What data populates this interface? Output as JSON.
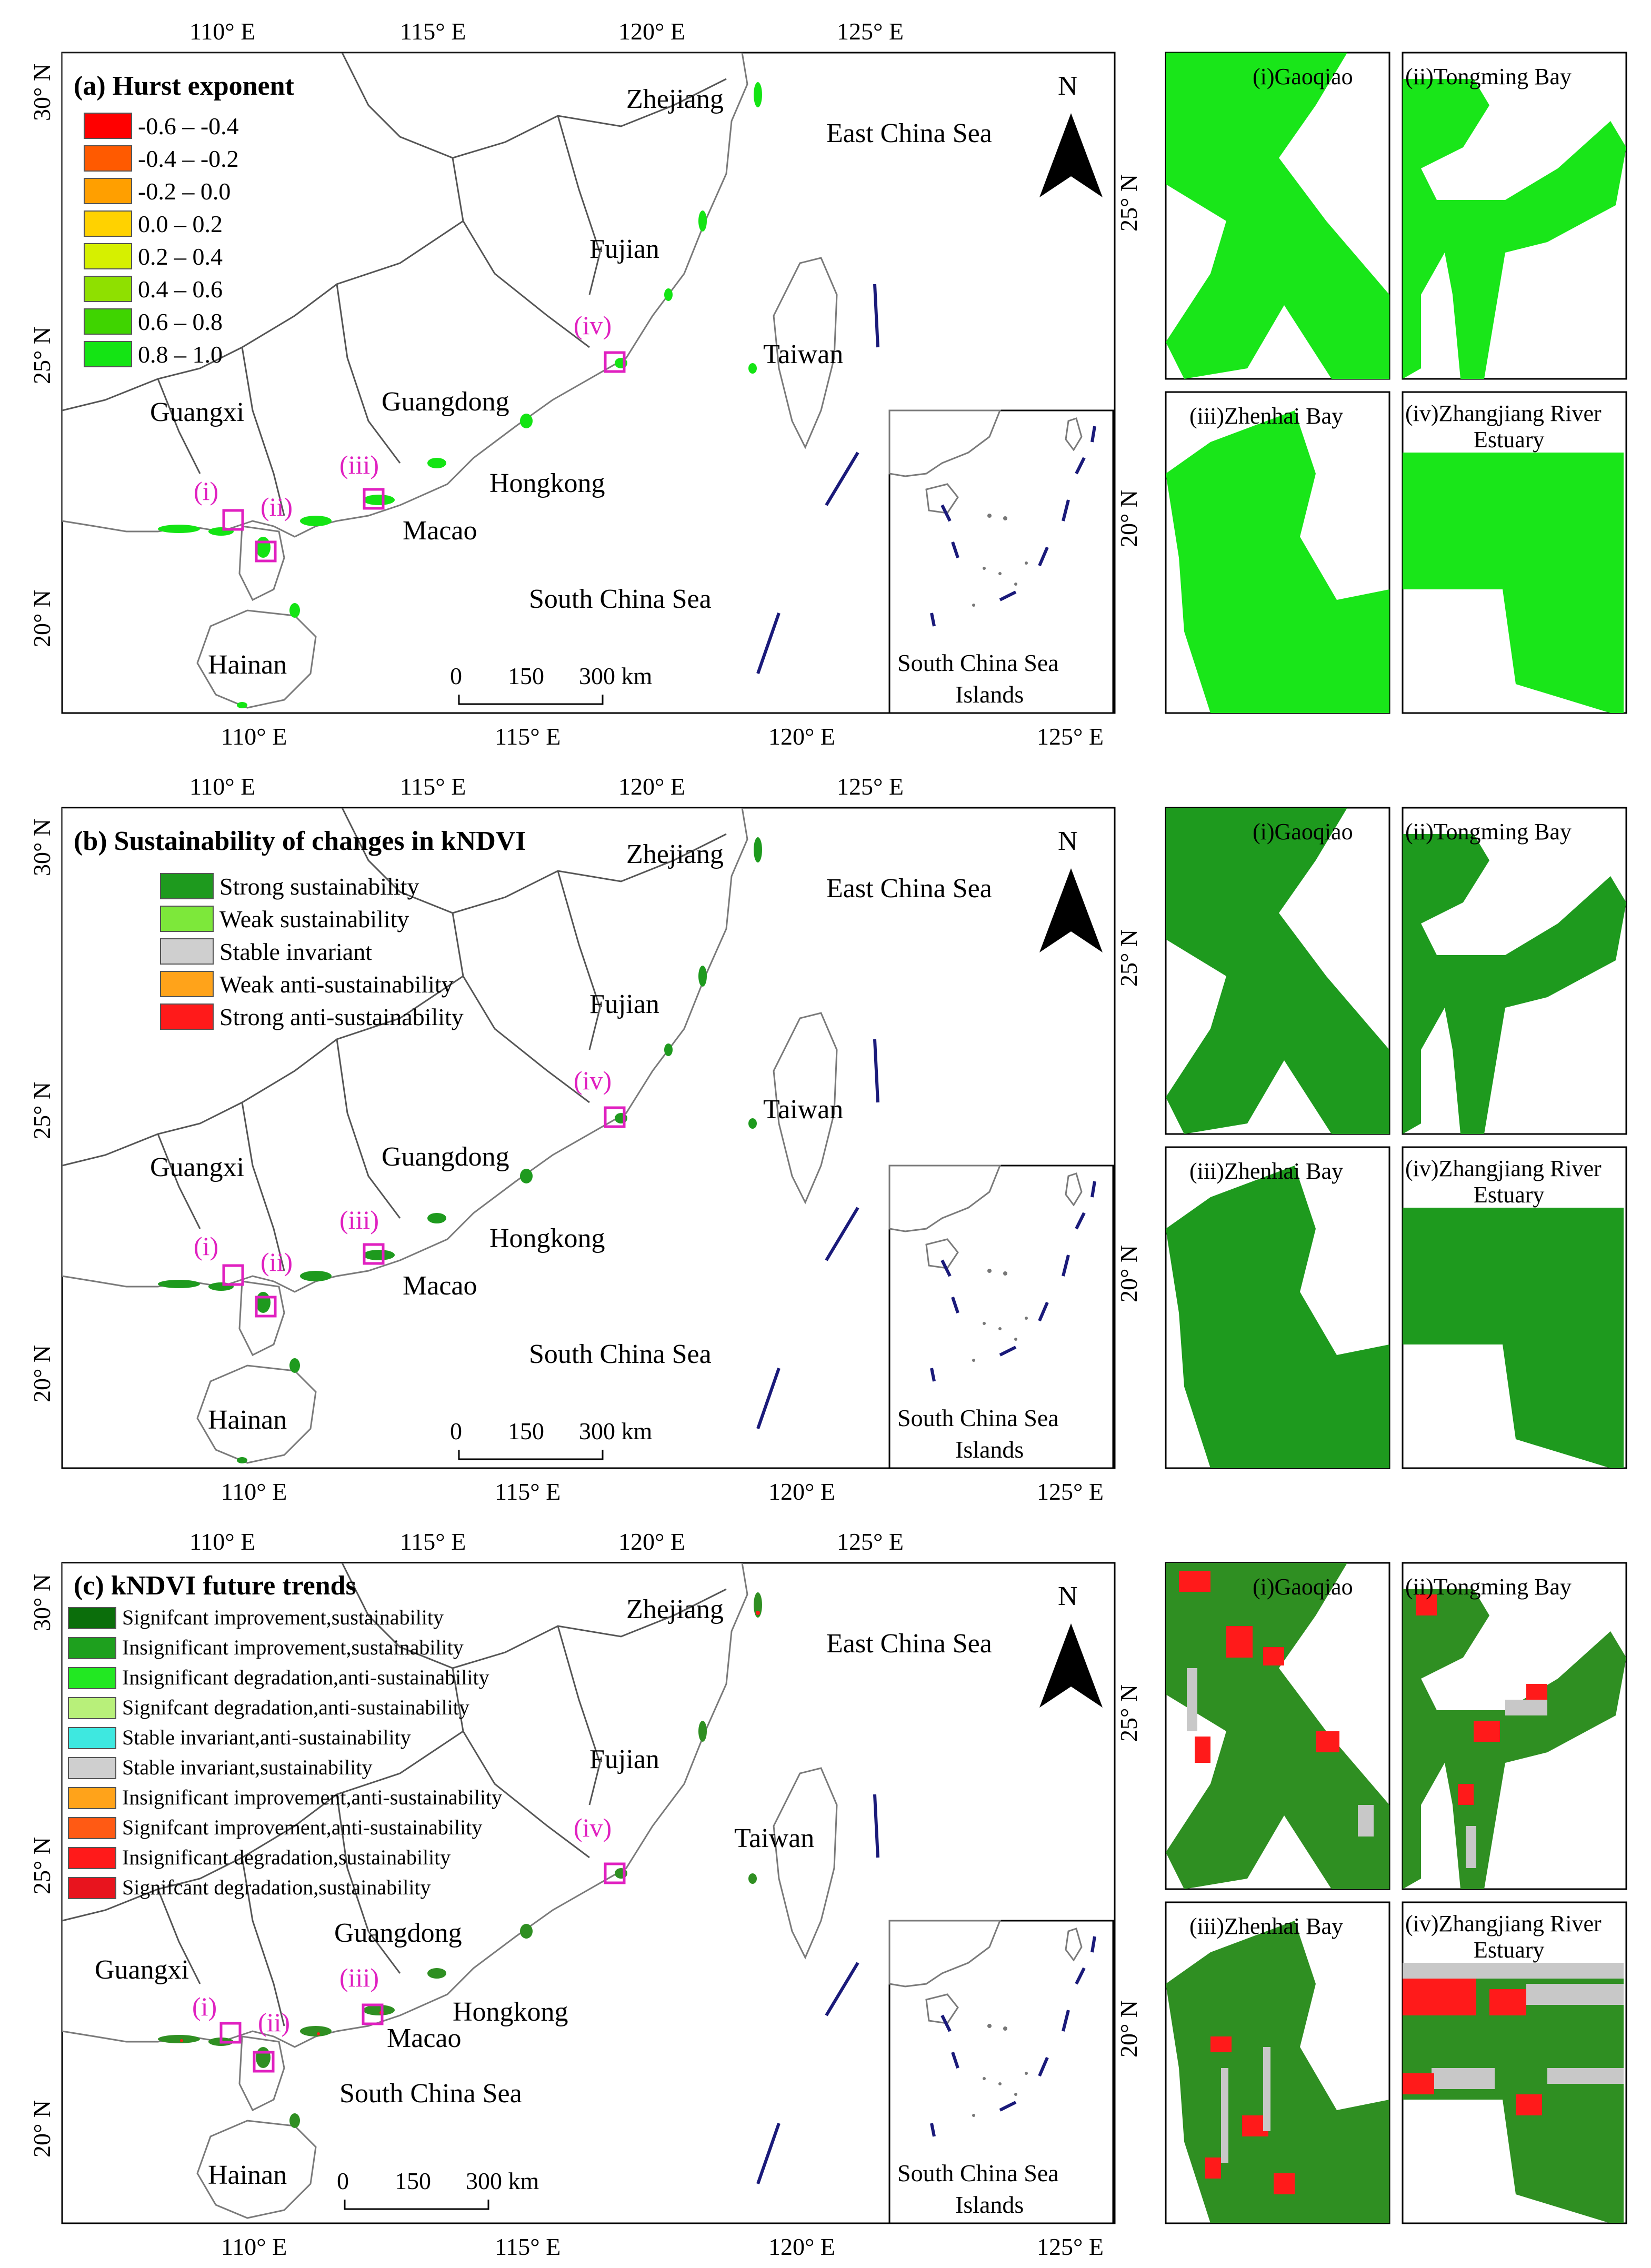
{
  "axes": {
    "lon_ticks": [
      "110° E",
      "115° E",
      "120° E",
      "125° E"
    ],
    "lat_ticks": [
      "30° N",
      "25° N",
      "20° N"
    ],
    "inset_lat_ticks": [
      "25° N",
      "20° N"
    ]
  },
  "common_labels": {
    "north": "N",
    "provinces": [
      "Zhejiang",
      "Fujian",
      "Guangdong",
      "Guangxi",
      "Hongkong",
      "Macao",
      "Hainan",
      "Taiwan"
    ],
    "seas": [
      "East China Sea",
      "South China Sea"
    ],
    "inset_title_line1": "South China Sea",
    "inset_title_line2": "Islands",
    "scale": [
      "0",
      "150",
      "300 km"
    ],
    "roman": [
      "(i)",
      "(ii)",
      "(iii)",
      "(iv)"
    ],
    "zoom_titles": [
      "(i)Gaoqiao",
      "(ii)Tongming Bay",
      "(iii)Zhenhai Bay",
      "(iv)Zhangjiang River",
      "Estuary"
    ]
  },
  "panel_a": {
    "title": "(a) Hurst exponent",
    "legend": [
      {
        "label": "-0.6 – -0.4",
        "color": "#ff0000"
      },
      {
        "label": "-0.4 – -0.2",
        "color": "#ff5a00"
      },
      {
        "label": "-0.2 – 0.0",
        "color": "#ff9f00"
      },
      {
        "label": "0.0 – 0.2",
        "color": "#ffd200"
      },
      {
        "label": "0.2 – 0.4",
        "color": "#d6f000"
      },
      {
        "label": "0.4 – 0.6",
        "color": "#8fe000"
      },
      {
        "label": "0.6 – 0.8",
        "color": "#3fd400"
      },
      {
        "label": "0.8 – 1.0",
        "color": "#14e414"
      }
    ],
    "zoom_fill": "#19e619"
  },
  "panel_b": {
    "title": "(b) Sustainability of changes in kNDVI",
    "legend": [
      {
        "label": "Strong sustainability",
        "color": "#1e9a1e"
      },
      {
        "label": "Weak sustainability",
        "color": "#7de83a"
      },
      {
        "label": "Stable invariant",
        "color": "#cfcfcf"
      },
      {
        "label": "Weak anti-sustainability",
        "color": "#ffa31a"
      },
      {
        "label": "Strong anti-sustainability",
        "color": "#ff1a1a"
      }
    ],
    "zoom_fill": "#1e9a1e"
  },
  "panel_c": {
    "title": "(c) kNDVI future trends",
    "legend": [
      {
        "label": "Signifcant improvement,sustainability",
        "color": "#0b6e0b"
      },
      {
        "label": "Insignificant improvement,sustainability",
        "color": "#1ea01e"
      },
      {
        "label": "Insignificant degradation,anti-sustainability",
        "color": "#22e822"
      },
      {
        "label": "Signifcant degradation,anti-sustainability",
        "color": "#b8f07a"
      },
      {
        "label": "Stable invariant,anti-sustainability",
        "color": "#3ee8e0"
      },
      {
        "label": "Stable invariant,sustainability",
        "color": "#cfcfcf"
      },
      {
        "label": "Insignificant improvement,anti-sustainability",
        "color": "#ffa31a"
      },
      {
        "label": "Signifcant improvement,anti-sustainability",
        "color": "#ff5a14"
      },
      {
        "label": "Insignificant degradation,sustainability",
        "color": "#ff1a1a"
      },
      {
        "label": "Signifcant degradation,sustainability",
        "color": "#e8141e"
      }
    ],
    "zoom_fill": "#2f8f22",
    "zoom_hot": "#ff1a1a",
    "zoom_grey": "#c8c8c8"
  }
}
